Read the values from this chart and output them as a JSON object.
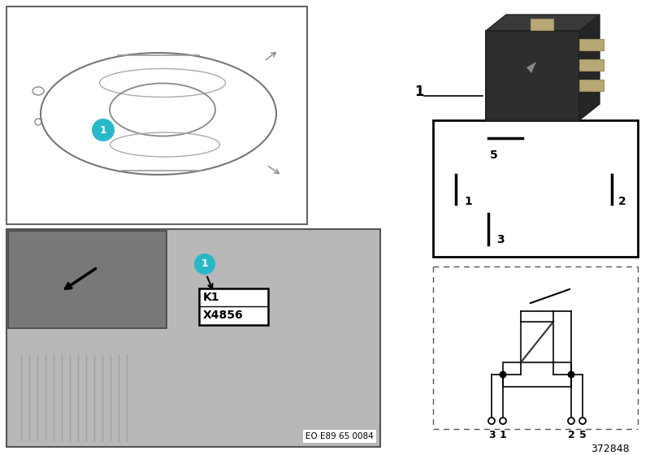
{
  "bg_color": "#ffffff",
  "cyan_color": "#29b8c8",
  "gray_photo": "#b8b8b8",
  "gray_dark": "#888888",
  "gray_inset": "#909090",
  "black": "#000000",
  "white": "#ffffff",
  "relay_body": "#2c2c2c",
  "relay_pin": "#b8a878",
  "k1_text": "K1",
  "x4856_text": "X4856",
  "eo_text": "EO E89 65 0084",
  "ref_text": "372848",
  "label1": "1"
}
